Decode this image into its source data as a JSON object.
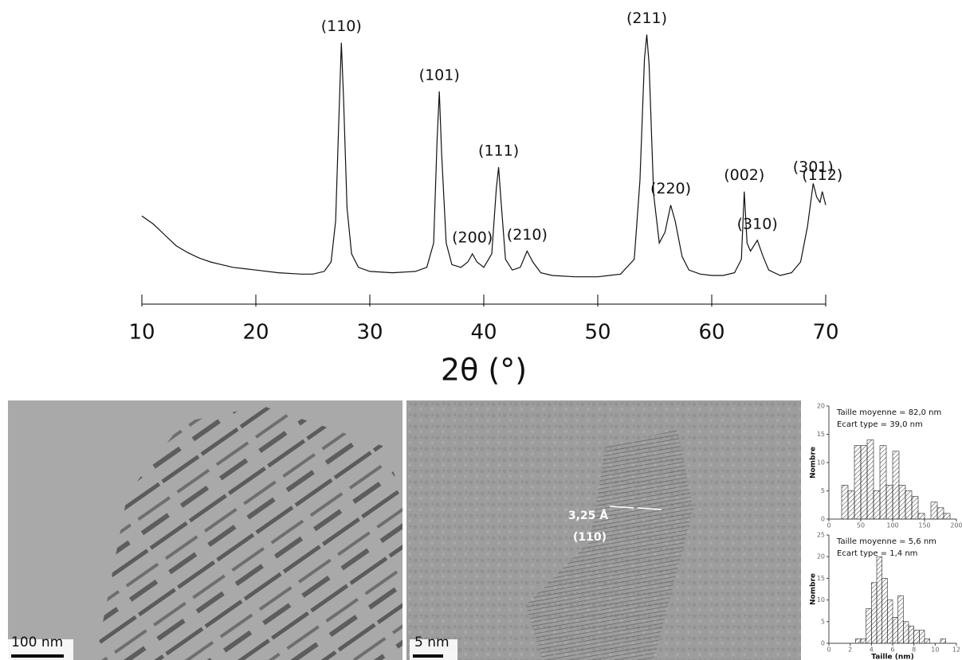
{
  "chart_data": [
    {
      "type": "line",
      "xlabel": "2θ (°)",
      "color": "#111111",
      "xlim": [
        10,
        70
      ],
      "xticks": [
        10,
        20,
        30,
        40,
        50,
        60,
        70
      ],
      "ylim": [
        0,
        100
      ],
      "x": [
        10,
        11,
        12,
        13,
        14,
        15,
        16,
        17,
        18,
        19,
        20,
        22,
        24,
        25,
        26,
        26.6,
        27,
        27.3,
        27.5,
        27.7,
        28,
        28.4,
        29,
        30,
        32,
        34,
        35,
        35.6,
        35.9,
        36.1,
        36.3,
        36.7,
        37.2,
        38,
        38.6,
        39,
        39.4,
        40,
        40.7,
        41.1,
        41.3,
        41.5,
        41.9,
        42.5,
        43.2,
        43.8,
        44.3,
        45,
        46,
        48,
        50,
        52,
        53.2,
        53.7,
        54.1,
        54.3,
        54.5,
        54.9,
        55.4,
        55.9,
        56.4,
        56.8,
        57.4,
        58,
        59,
        60,
        61,
        62,
        62.6,
        62.85,
        63.1,
        63.4,
        64,
        64.5,
        65,
        66,
        67,
        67.8,
        68.4,
        68.9,
        69.2,
        69.5,
        69.7,
        70
      ],
      "y": [
        32,
        29,
        25,
        21,
        18.5,
        16.5,
        15,
        14,
        13,
        12.5,
        12,
        11,
        10.5,
        10.5,
        11.5,
        15,
        30,
        70,
        96,
        75,
        35,
        18,
        13,
        11.5,
        11,
        11.5,
        13,
        22,
        60,
        78,
        55,
        22,
        14,
        13,
        15,
        18,
        15,
        13,
        18,
        42,
        50,
        38,
        16,
        12,
        13,
        19,
        15,
        11,
        10,
        9.5,
        9.5,
        10.5,
        16,
        45,
        90,
        99,
        88,
        40,
        22,
        26,
        36,
        30,
        17,
        12,
        10.5,
        10,
        10,
        11,
        16,
        41,
        22,
        19,
        23,
        17,
        12,
        10,
        11,
        15,
        28,
        44,
        39,
        37,
        41,
        36
      ],
      "peak_labels": [
        {
          "label": "(110)",
          "x": 27.5
        },
        {
          "label": "(101)",
          "x": 36.1
        },
        {
          "label": "(200)",
          "x": 39
        },
        {
          "label": "(111)",
          "x": 41.3
        },
        {
          "label": "(210)",
          "x": 43.8
        },
        {
          "label": "(211)",
          "x": 54.3
        },
        {
          "label": "(220)",
          "x": 56.4
        },
        {
          "label": "(002)",
          "x": 62.85
        },
        {
          "label": "(310)",
          "x": 64
        },
        {
          "label": "(301)",
          "x": 68.9
        },
        {
          "label": "(112)",
          "x": 69.7
        }
      ]
    },
    {
      "type": "histogram",
      "title_lines": [
        "Taille moyenne = 82,0 nm",
        "Ecart type = 39,0 nm"
      ],
      "ylabel": "Nombre",
      "xlim": [
        0,
        200
      ],
      "xticks": [
        0,
        50,
        100,
        150,
        200
      ],
      "ylim": [
        0,
        20
      ],
      "yticks": [
        0,
        5,
        10,
        15,
        20
      ],
      "bins": [
        20,
        30,
        40,
        50,
        60,
        70,
        80,
        90,
        100,
        110,
        120,
        130,
        140,
        150,
        160,
        170,
        180,
        190
      ],
      "counts": [
        6,
        5,
        13,
        13,
        14,
        5,
        13,
        6,
        12,
        6,
        5,
        4,
        1,
        0,
        3,
        2,
        1
      ]
    },
    {
      "type": "histogram",
      "title_lines": [
        "Taille moyenne = 5,6 nm",
        "Ecart type = 1,4 nm"
      ],
      "ylabel": "Nombre",
      "xlabel": "Taille (nm)",
      "xlim": [
        0,
        12
      ],
      "xticks": [
        0,
        2,
        4,
        6,
        8,
        10,
        12
      ],
      "ylim": [
        0,
        25
      ],
      "yticks": [
        0,
        5,
        10,
        15,
        20,
        25
      ],
      "bins": [
        2.5,
        3,
        3.5,
        4,
        4.5,
        5,
        5.5,
        6,
        6.5,
        7,
        7.5,
        8,
        8.5,
        9,
        9.5,
        10,
        10.5,
        11
      ],
      "counts": [
        1,
        1,
        8,
        14,
        20,
        15,
        10,
        6,
        11,
        5,
        4,
        3,
        3,
        1,
        0,
        0,
        1
      ]
    }
  ],
  "images": [
    {
      "scale_bar": "100 nm"
    },
    {
      "scale_bar": "5 nm",
      "annotation": [
        "3,25 Å",
        "(110)"
      ]
    }
  ]
}
